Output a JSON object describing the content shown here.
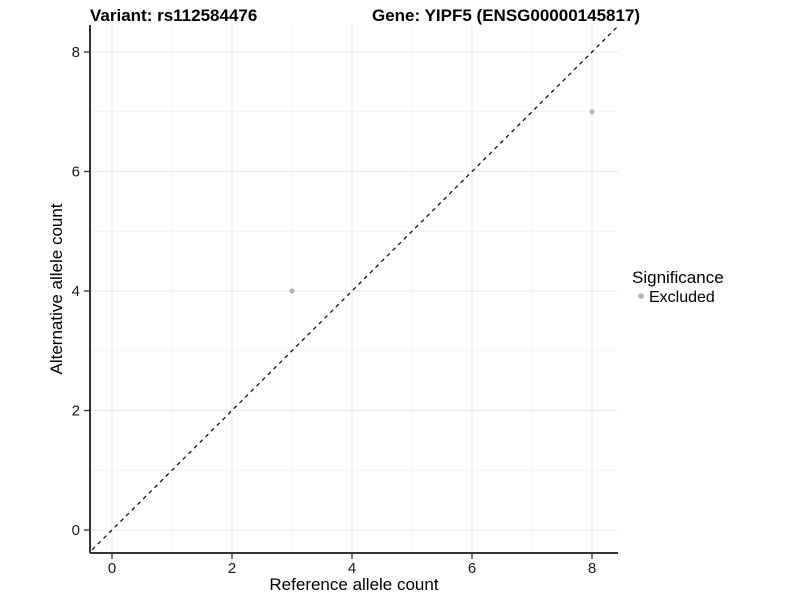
{
  "page": {
    "background": "#ffffff"
  },
  "chart_data": {
    "type": "scatter",
    "title_left": "Variant: rs112584476",
    "title_right": "Gene: YIPF5 (ENSG00000145817)",
    "xlabel": "Reference allele count",
    "ylabel": "Alternative allele count",
    "xlim": [
      -0.42,
      8.42
    ],
    "ylim": [
      -0.42,
      8.42
    ],
    "x_ticks": [
      0,
      2,
      4,
      6,
      8
    ],
    "y_ticks": [
      0,
      2,
      4,
      6,
      8
    ],
    "x_minor_gridlines": [
      1,
      3,
      5,
      7
    ],
    "y_minor_gridlines": [
      1,
      3,
      5,
      7
    ],
    "grid": true,
    "series": [
      {
        "name": "Excluded",
        "points": [
          {
            "x": 3,
            "y": 4
          },
          {
            "x": 8,
            "y": 7
          }
        ]
      }
    ],
    "reference_line": {
      "slope": 1,
      "intercept": 0,
      "style": "dashed",
      "color": "#000000"
    },
    "legend": {
      "title": "Significance",
      "position": "right",
      "items": [
        {
          "label": "Excluded",
          "color": "#b4b4b4"
        }
      ]
    },
    "colors": {
      "point": "#b4b4b4",
      "grid_major": "#e9e9e9",
      "grid_minor": "#f3f3f3",
      "axis_line": "#333333",
      "tick_mark": "#333333",
      "text": "#000000"
    }
  }
}
